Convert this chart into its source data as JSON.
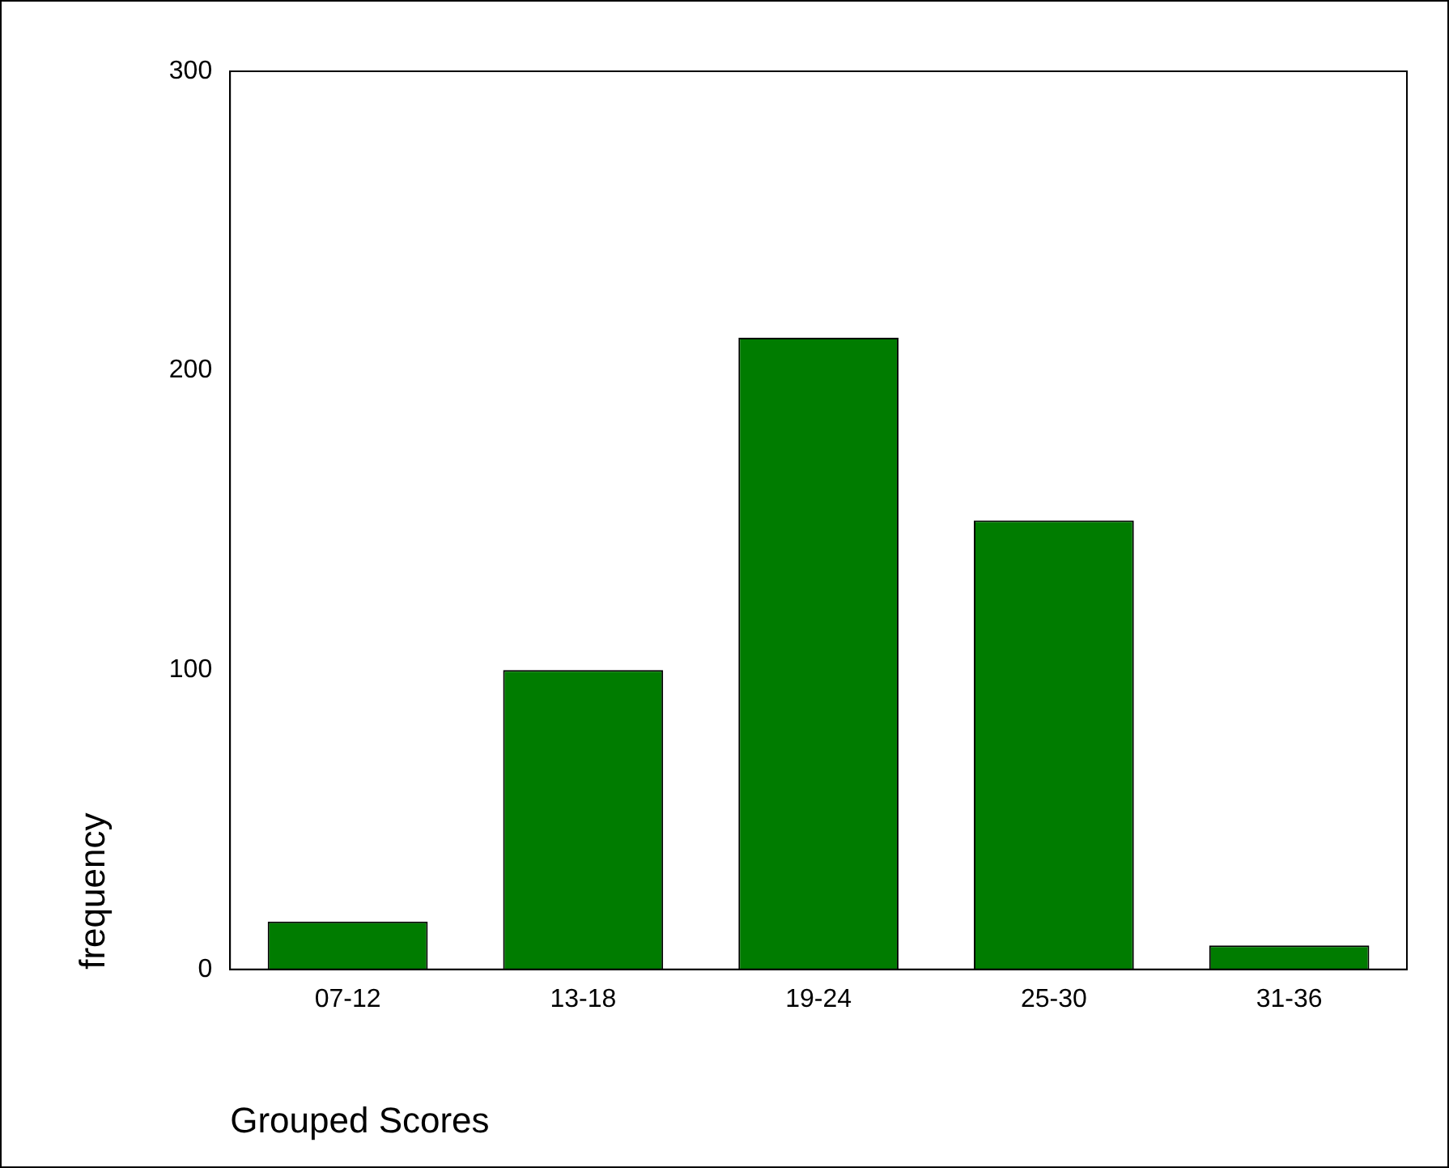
{
  "chart_data": {
    "type": "bar",
    "xlabel": "Grouped Scores",
    "ylabel": "frequency",
    "categories": [
      "07-12",
      "13-18",
      "19-24",
      "25-30",
      "31-36"
    ],
    "values": [
      16,
      100,
      211,
      150,
      8
    ],
    "color": "#007c00",
    "ylim": [
      0,
      300
    ],
    "yticks": [
      0,
      100,
      200,
      300
    ],
    "grid": false
  }
}
